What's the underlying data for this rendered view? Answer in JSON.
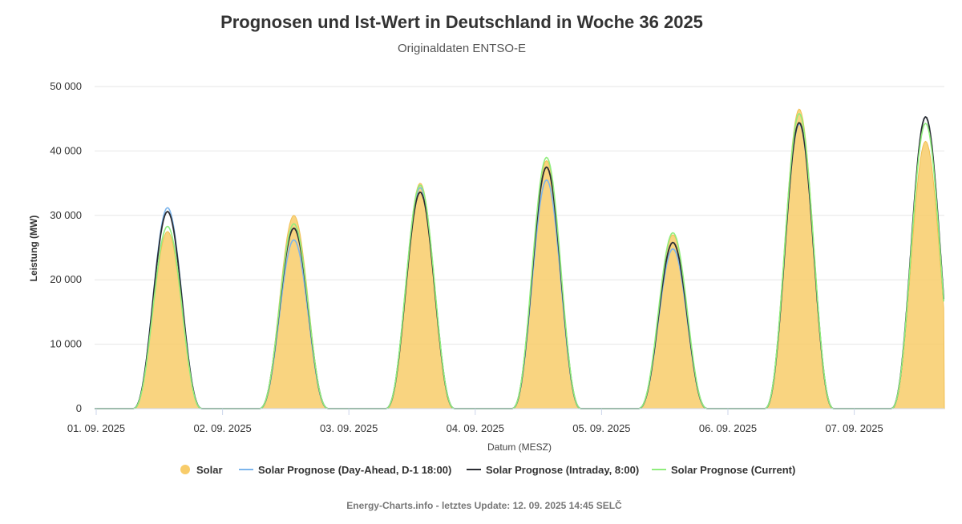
{
  "chart_data": {
    "type": "area",
    "title": "Prognosen und Ist-Wert in Deutschland in Woche 36 2025",
    "subtitle": "Originaldaten ENTSO-E",
    "xlabel": "Datum (MESZ)",
    "ylabel": "Leistung (MW)",
    "ylim": [
      0,
      50000
    ],
    "y_ticks": [
      0,
      10000,
      20000,
      30000,
      40000,
      50000
    ],
    "y_tick_labels": [
      "0",
      "10 000",
      "20 000",
      "30 000",
      "40 000",
      "50 000"
    ],
    "x_tick_labels": [
      "01. 09. 2025",
      "02. 09. 2025",
      "03. 09. 2025",
      "04. 09. 2025",
      "05. 09. 2025",
      "06. 09. 2025",
      "07. 09. 2025"
    ],
    "x_unit": "day",
    "grid": true,
    "legend_position": "bottom",
    "daylight_window": {
      "sunrise_hour": 6.9,
      "sunset_hour": 20.2
    },
    "series": [
      {
        "name": "Solar",
        "kind": "area",
        "color": "#f8cc6a",
        "daily_peaks": [
          27500,
          30000,
          35000,
          38500,
          27000,
          46500,
          41500
        ],
        "peak_hours": [
          13.2,
          13.2,
          13.2,
          13.2,
          13.2,
          13.2,
          13.2
        ]
      },
      {
        "name": "Solar Prognose (Day-Ahead, D-1 18:00)",
        "kind": "line",
        "color": "#7cb5ec",
        "daily_peaks": [
          31200,
          26200,
          34300,
          35500,
          24800,
          44200,
          45300
        ]
      },
      {
        "name": "Solar Prognose (Intraday, 8:00)",
        "kind": "line",
        "color": "#2b2d33",
        "daily_peaks": [
          30600,
          28000,
          33600,
          37500,
          25800,
          44400,
          45300
        ]
      },
      {
        "name": "Solar Prognose (Current)",
        "kind": "line",
        "color": "#90ed7d",
        "daily_peaks": [
          28300,
          28700,
          34700,
          39000,
          27300,
          45800,
          44300
        ]
      }
    ]
  },
  "credits": "Energy-Charts.info - letztes Update: 12. 09. 2025 14:45 SELČ"
}
